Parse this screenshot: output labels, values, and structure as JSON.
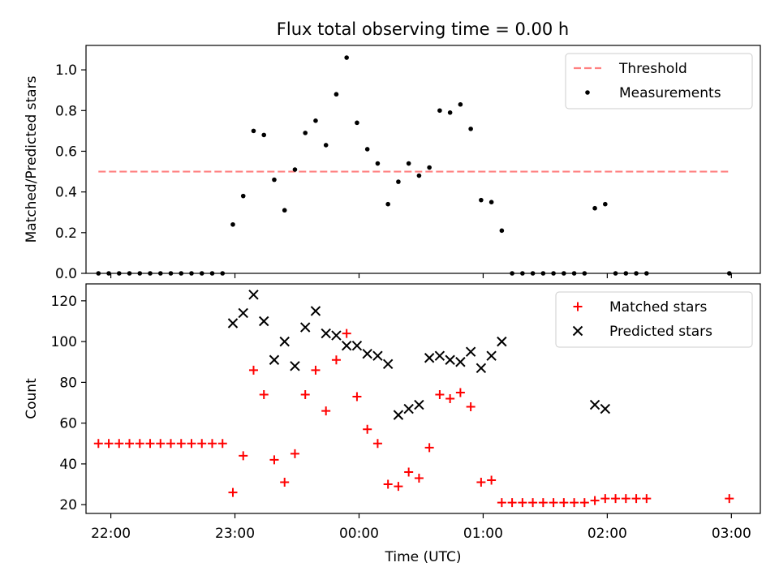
{
  "figure": {
    "title": "Flux total observing time = 0.00 h"
  },
  "chart_data": [
    {
      "type": "scatter",
      "ylabel": "Matched/Predicted stars",
      "xlabel": "",
      "x_axis_type": "time",
      "xlim": [
        "21:48",
        "03:14"
      ],
      "ylim": [
        0,
        1.12
      ],
      "yticks": [
        0.0,
        0.2,
        0.4,
        0.6,
        0.8,
        1.0
      ],
      "ytick_labels": [
        "0.0",
        "0.2",
        "0.4",
        "0.6",
        "0.8",
        "1.0"
      ],
      "xticks": [
        "22:00",
        "23:00",
        "00:00",
        "01:00",
        "02:00",
        "03:00"
      ],
      "show_xtick_labels": false,
      "grid": false,
      "legend": {
        "position": "upper right",
        "entries": [
          "Threshold",
          "Measurements"
        ]
      },
      "series": [
        {
          "name": "Threshold",
          "kind": "dashed-line",
          "color": "#ff8080",
          "points": [
            {
              "x": "21:54",
              "y": 0.5
            },
            {
              "x": "02:59",
              "y": 0.5
            }
          ]
        },
        {
          "name": "Measurements",
          "kind": "dot",
          "color": "#000000",
          "points": [
            {
              "x": "21:54",
              "y": 0.0
            },
            {
              "x": "21:59",
              "y": 0.0
            },
            {
              "x": "22:04",
              "y": 0.0
            },
            {
              "x": "22:09",
              "y": 0.0
            },
            {
              "x": "22:14",
              "y": 0.0
            },
            {
              "x": "22:19",
              "y": 0.0
            },
            {
              "x": "22:24",
              "y": 0.0
            },
            {
              "x": "22:29",
              "y": 0.0
            },
            {
              "x": "22:34",
              "y": 0.0
            },
            {
              "x": "22:39",
              "y": 0.0
            },
            {
              "x": "22:44",
              "y": 0.0
            },
            {
              "x": "22:49",
              "y": 0.0
            },
            {
              "x": "22:54",
              "y": 0.0
            },
            {
              "x": "22:59",
              "y": 0.24
            },
            {
              "x": "23:04",
              "y": 0.38
            },
            {
              "x": "23:09",
              "y": 0.7
            },
            {
              "x": "23:14",
              "y": 0.68
            },
            {
              "x": "23:19",
              "y": 0.46
            },
            {
              "x": "23:24",
              "y": 0.31
            },
            {
              "x": "23:29",
              "y": 0.51
            },
            {
              "x": "23:34",
              "y": 0.69
            },
            {
              "x": "23:39",
              "y": 0.75
            },
            {
              "x": "23:44",
              "y": 0.63
            },
            {
              "x": "23:49",
              "y": 0.88
            },
            {
              "x": "23:54",
              "y": 1.06
            },
            {
              "x": "23:59",
              "y": 0.74
            },
            {
              "x": "00:04",
              "y": 0.61
            },
            {
              "x": "00:09",
              "y": 0.54
            },
            {
              "x": "00:14",
              "y": 0.34
            },
            {
              "x": "00:19",
              "y": 0.45
            },
            {
              "x": "00:24",
              "y": 0.54
            },
            {
              "x": "00:29",
              "y": 0.48
            },
            {
              "x": "00:34",
              "y": 0.52
            },
            {
              "x": "00:39",
              "y": 0.8
            },
            {
              "x": "00:44",
              "y": 0.79
            },
            {
              "x": "00:49",
              "y": 0.83
            },
            {
              "x": "00:54",
              "y": 0.71
            },
            {
              "x": "00:59",
              "y": 0.36
            },
            {
              "x": "01:04",
              "y": 0.35
            },
            {
              "x": "01:09",
              "y": 0.21
            },
            {
              "x": "01:14",
              "y": 0.0
            },
            {
              "x": "01:19",
              "y": 0.0
            },
            {
              "x": "01:24",
              "y": 0.0
            },
            {
              "x": "01:29",
              "y": 0.0
            },
            {
              "x": "01:34",
              "y": 0.0
            },
            {
              "x": "01:39",
              "y": 0.0
            },
            {
              "x": "01:44",
              "y": 0.0
            },
            {
              "x": "01:49",
              "y": 0.0
            },
            {
              "x": "01:54",
              "y": 0.32
            },
            {
              "x": "01:59",
              "y": 0.34
            },
            {
              "x": "02:04",
              "y": 0.0
            },
            {
              "x": "02:09",
              "y": 0.0
            },
            {
              "x": "02:14",
              "y": 0.0
            },
            {
              "x": "02:19",
              "y": 0.0
            },
            {
              "x": "02:59",
              "y": 0.0
            }
          ]
        }
      ]
    },
    {
      "type": "scatter",
      "ylabel": "Count",
      "xlabel": "Time (UTC)",
      "x_axis_type": "time",
      "xlim": [
        "21:48",
        "03:14"
      ],
      "ylim": [
        15.7,
        128.3
      ],
      "yticks": [
        20,
        40,
        60,
        80,
        100,
        120
      ],
      "ytick_labels": [
        "20",
        "40",
        "60",
        "80",
        "100",
        "120"
      ],
      "xticks": [
        "22:00",
        "23:00",
        "00:00",
        "01:00",
        "02:00",
        "03:00"
      ],
      "xtick_labels": [
        "22:00",
        "23:00",
        "00:00",
        "01:00",
        "02:00",
        "03:00"
      ],
      "show_xtick_labels": true,
      "grid": false,
      "legend": {
        "position": "upper right",
        "entries": [
          "Matched stars",
          "Predicted stars"
        ]
      },
      "series": [
        {
          "name": "Matched stars",
          "kind": "plus",
          "color": "#ff0000",
          "points": [
            {
              "x": "21:54",
              "y": 50
            },
            {
              "x": "21:59",
              "y": 50
            },
            {
              "x": "22:04",
              "y": 50
            },
            {
              "x": "22:09",
              "y": 50
            },
            {
              "x": "22:14",
              "y": 50
            },
            {
              "x": "22:19",
              "y": 50
            },
            {
              "x": "22:24",
              "y": 50
            },
            {
              "x": "22:29",
              "y": 50
            },
            {
              "x": "22:34",
              "y": 50
            },
            {
              "x": "22:39",
              "y": 50
            },
            {
              "x": "22:44",
              "y": 50
            },
            {
              "x": "22:49",
              "y": 50
            },
            {
              "x": "22:54",
              "y": 50
            },
            {
              "x": "22:59",
              "y": 26
            },
            {
              "x": "23:04",
              "y": 44
            },
            {
              "x": "23:09",
              "y": 86
            },
            {
              "x": "23:14",
              "y": 74
            },
            {
              "x": "23:19",
              "y": 42
            },
            {
              "x": "23:24",
              "y": 31
            },
            {
              "x": "23:29",
              "y": 45
            },
            {
              "x": "23:34",
              "y": 74
            },
            {
              "x": "23:39",
              "y": 86
            },
            {
              "x": "23:44",
              "y": 66
            },
            {
              "x": "23:49",
              "y": 91
            },
            {
              "x": "23:54",
              "y": 104
            },
            {
              "x": "23:59",
              "y": 73
            },
            {
              "x": "00:04",
              "y": 57
            },
            {
              "x": "00:09",
              "y": 50
            },
            {
              "x": "00:14",
              "y": 30
            },
            {
              "x": "00:19",
              "y": 29
            },
            {
              "x": "00:24",
              "y": 36
            },
            {
              "x": "00:29",
              "y": 33
            },
            {
              "x": "00:34",
              "y": 48
            },
            {
              "x": "00:39",
              "y": 74
            },
            {
              "x": "00:44",
              "y": 72
            },
            {
              "x": "00:49",
              "y": 75
            },
            {
              "x": "00:54",
              "y": 68
            },
            {
              "x": "00:59",
              "y": 31
            },
            {
              "x": "01:04",
              "y": 32
            },
            {
              "x": "01:09",
              "y": 21
            },
            {
              "x": "01:14",
              "y": 21
            },
            {
              "x": "01:19",
              "y": 21
            },
            {
              "x": "01:24",
              "y": 21
            },
            {
              "x": "01:29",
              "y": 21
            },
            {
              "x": "01:34",
              "y": 21
            },
            {
              "x": "01:39",
              "y": 21
            },
            {
              "x": "01:44",
              "y": 21
            },
            {
              "x": "01:49",
              "y": 21
            },
            {
              "x": "01:54",
              "y": 22
            },
            {
              "x": "01:59",
              "y": 23
            },
            {
              "x": "02:04",
              "y": 23
            },
            {
              "x": "02:09",
              "y": 23
            },
            {
              "x": "02:14",
              "y": 23
            },
            {
              "x": "02:19",
              "y": 23
            },
            {
              "x": "02:59",
              "y": 23
            }
          ]
        },
        {
          "name": "Predicted stars",
          "kind": "x",
          "color": "#000000",
          "points": [
            {
              "x": "22:59",
              "y": 109
            },
            {
              "x": "23:04",
              "y": 114
            },
            {
              "x": "23:09",
              "y": 123
            },
            {
              "x": "23:14",
              "y": 110
            },
            {
              "x": "23:19",
              "y": 91
            },
            {
              "x": "23:24",
              "y": 100
            },
            {
              "x": "23:29",
              "y": 88
            },
            {
              "x": "23:34",
              "y": 107
            },
            {
              "x": "23:39",
              "y": 115
            },
            {
              "x": "23:44",
              "y": 104
            },
            {
              "x": "23:49",
              "y": 103
            },
            {
              "x": "23:54",
              "y": 98
            },
            {
              "x": "23:59",
              "y": 98
            },
            {
              "x": "00:04",
              "y": 94
            },
            {
              "x": "00:09",
              "y": 93
            },
            {
              "x": "00:14",
              "y": 89
            },
            {
              "x": "00:19",
              "y": 64
            },
            {
              "x": "00:24",
              "y": 67
            },
            {
              "x": "00:29",
              "y": 69
            },
            {
              "x": "00:34",
              "y": 92
            },
            {
              "x": "00:39",
              "y": 93
            },
            {
              "x": "00:44",
              "y": 91
            },
            {
              "x": "00:49",
              "y": 90
            },
            {
              "x": "00:54",
              "y": 95
            },
            {
              "x": "00:59",
              "y": 87
            },
            {
              "x": "01:04",
              "y": 93
            },
            {
              "x": "01:09",
              "y": 100
            },
            {
              "x": "01:54",
              "y": 69
            },
            {
              "x": "01:59",
              "y": 67
            }
          ]
        }
      ]
    }
  ]
}
